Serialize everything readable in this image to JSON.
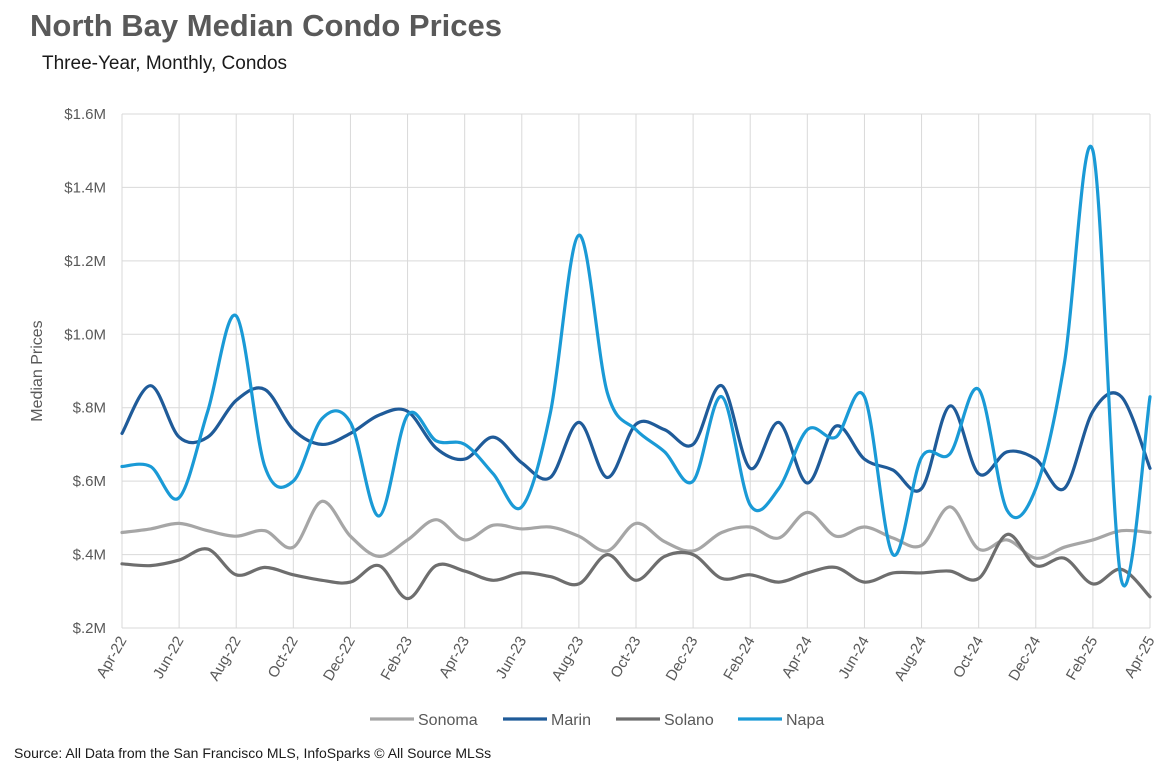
{
  "title": "North Bay Median Condo Prices",
  "subtitle": "Three-Year, Monthly, Condos",
  "source": "Source: All Data from the San Francisco MLS, InfoSparks © All Source MLSs",
  "chart_data": {
    "type": "line",
    "ylabel": "Median Prices",
    "ylim": [
      200000,
      1600000
    ],
    "y_ticks": [
      200000,
      400000,
      600000,
      800000,
      1000000,
      1200000,
      1400000,
      1600000
    ],
    "y_tick_labels": [
      "$.2M",
      "$.4M",
      "$.6M",
      "$.8M",
      "$1.0M",
      "$1.2M",
      "$1.4M",
      "$1.6M"
    ],
    "grid": true,
    "legend_position": "bottom",
    "x": [
      "Apr-22",
      "May-22",
      "Jun-22",
      "Jul-22",
      "Aug-22",
      "Sep-22",
      "Oct-22",
      "Nov-22",
      "Dec-22",
      "Jan-23",
      "Feb-23",
      "Mar-23",
      "Apr-23",
      "May-23",
      "Jun-23",
      "Jul-23",
      "Aug-23",
      "Sep-23",
      "Oct-23",
      "Nov-23",
      "Dec-23",
      "Jan-24",
      "Feb-24",
      "Mar-24",
      "Apr-24",
      "May-24",
      "Jun-24",
      "Jul-24",
      "Aug-24",
      "Sep-24",
      "Oct-24",
      "Nov-24",
      "Dec-24",
      "Jan-25",
      "Feb-25",
      "Mar-25",
      "Apr-25"
    ],
    "x_tick_labels": [
      "Apr-22",
      "Jun-22",
      "Aug-22",
      "Oct-22",
      "Dec-22",
      "Feb-23",
      "Apr-23",
      "Jun-23",
      "Aug-23",
      "Oct-23",
      "Dec-23",
      "Feb-24",
      "Apr-24",
      "Jun-24",
      "Aug-24",
      "Oct-24",
      "Dec-24",
      "Feb-25",
      "Apr-25"
    ],
    "series": [
      {
        "name": "Sonoma",
        "color": "#a6a6a6",
        "values": [
          460000,
          470000,
          485000,
          465000,
          450000,
          465000,
          420000,
          545000,
          450000,
          395000,
          440000,
          495000,
          440000,
          480000,
          470000,
          475000,
          450000,
          410000,
          485000,
          435000,
          410000,
          460000,
          475000,
          445000,
          515000,
          450000,
          475000,
          445000,
          425000,
          530000,
          415000,
          440000,
          390000,
          420000,
          440000,
          465000,
          460000
        ]
      },
      {
        "name": "Marin",
        "color": "#1f5b99",
        "values": [
          730000,
          860000,
          720000,
          720000,
          820000,
          850000,
          740000,
          700000,
          730000,
          780000,
          790000,
          690000,
          660000,
          720000,
          650000,
          610000,
          760000,
          610000,
          755000,
          740000,
          700000,
          860000,
          635000,
          760000,
          595000,
          750000,
          660000,
          630000,
          580000,
          805000,
          620000,
          680000,
          660000,
          580000,
          790000,
          830000,
          635000
        ]
      },
      {
        "name": "Solano",
        "color": "#6e6e6e",
        "values": [
          375000,
          370000,
          385000,
          415000,
          345000,
          365000,
          345000,
          330000,
          325000,
          370000,
          280000,
          370000,
          355000,
          330000,
          350000,
          340000,
          320000,
          400000,
          330000,
          395000,
          400000,
          335000,
          345000,
          325000,
          350000,
          365000,
          325000,
          350000,
          350000,
          355000,
          335000,
          455000,
          370000,
          390000,
          320000,
          360000,
          285000
        ]
      },
      {
        "name": "Napa",
        "color": "#1a9ad6",
        "values": [
          640000,
          640000,
          555000,
          790000,
          1050000,
          640000,
          600000,
          770000,
          760000,
          505000,
          780000,
          710000,
          700000,
          620000,
          530000,
          785000,
          1270000,
          840000,
          740000,
          680000,
          600000,
          830000,
          535000,
          580000,
          740000,
          720000,
          830000,
          400000,
          665000,
          675000,
          850000,
          520000,
          580000,
          920000,
          1500000,
          330000,
          830000
        ]
      }
    ]
  }
}
